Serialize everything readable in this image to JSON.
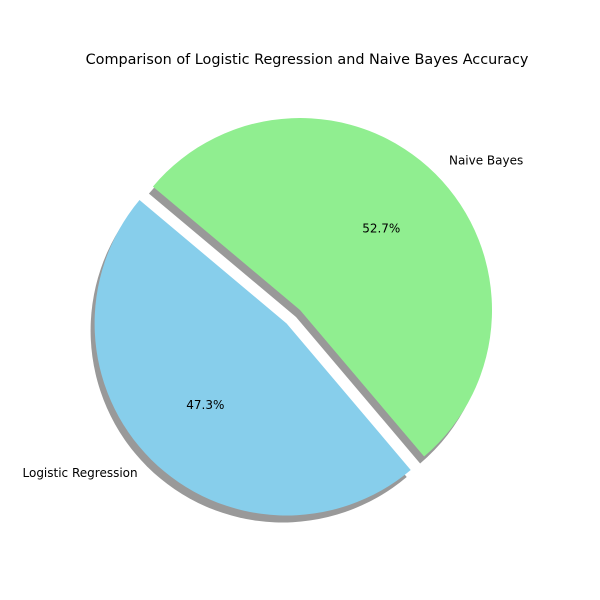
{
  "chart_data": {
    "type": "pie",
    "title": "Comparison of Logistic Regression and Naive Bayes Accuracy",
    "slices": [
      {
        "label": "Logistic Regression",
        "value": 47.3,
        "pct_label": "47.3%",
        "color": "#87ceeb",
        "exploded": true
      },
      {
        "label": "Naive Bayes",
        "value": 52.7,
        "pct_label": "52.7%",
        "color": "#90ee90",
        "exploded": false
      }
    ],
    "start_angle_deg": 140,
    "shadow": true
  }
}
